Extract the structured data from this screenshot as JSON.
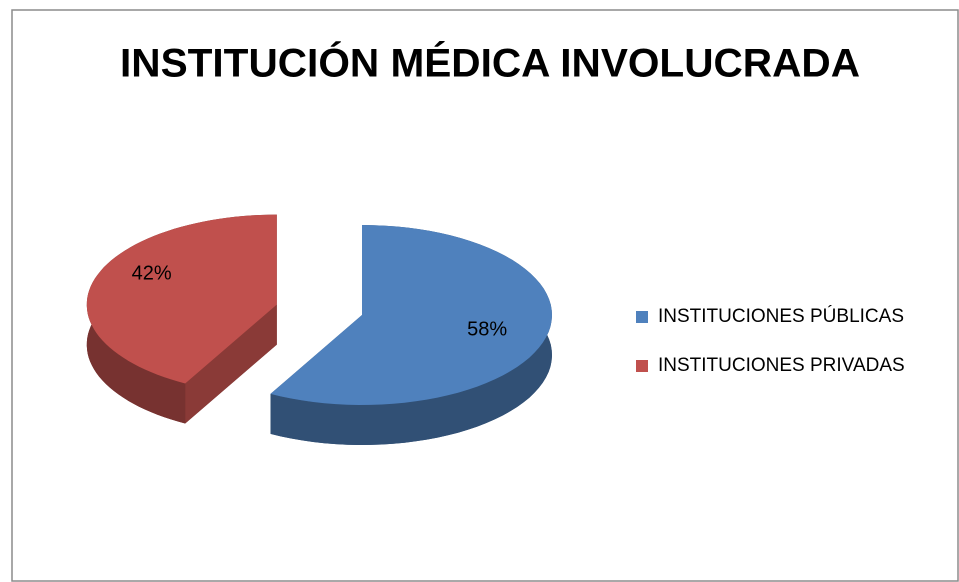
{
  "chart_data": {
    "type": "pie",
    "title": "INSTITUCIÓN MÉDICA INVOLUCRADA",
    "categories": [
      "INSTITUCIONES PÚBLICAS",
      "INSTITUCIONES PRIVADAS"
    ],
    "values": [
      58,
      42
    ],
    "value_labels": [
      "58%",
      "42%"
    ],
    "colors": [
      "#4f81bd",
      "#c0504d"
    ],
    "legend": "right",
    "explode": true,
    "three_d": true
  }
}
